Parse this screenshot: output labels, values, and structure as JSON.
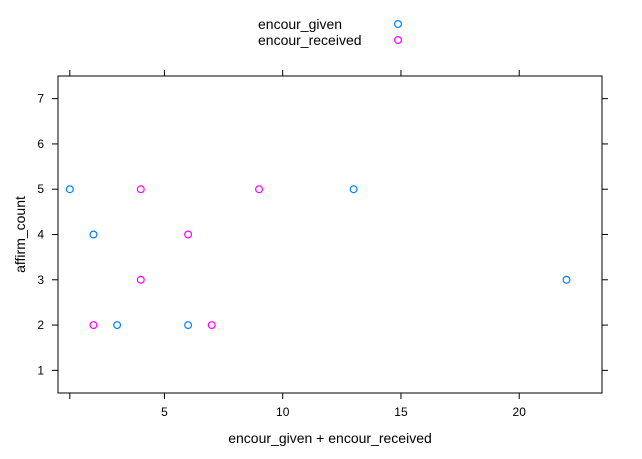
{
  "chart_data": {
    "type": "scatter",
    "xlabel": "encour_given + encour_received",
    "ylabel": "affirm_count",
    "xlim": [
      0.5,
      23.5
    ],
    "ylim": [
      0.5,
      7.5
    ],
    "x_ticks": [
      5,
      10,
      15,
      20
    ],
    "y_ticks": [
      1,
      2,
      3,
      4,
      5,
      6,
      7
    ],
    "legend_position": "top-center",
    "grid": false,
    "series": [
      {
        "name": "encour_given",
        "color": "#0080ff",
        "points": [
          {
            "x": 1,
            "y": 5
          },
          {
            "x": 2,
            "y": 4
          },
          {
            "x": 3,
            "y": 2
          },
          {
            "x": 6,
            "y": 2
          },
          {
            "x": 13,
            "y": 5
          },
          {
            "x": 22,
            "y": 3
          }
        ]
      },
      {
        "name": "encour_received",
        "color": "#ff00ff",
        "points": [
          {
            "x": 2,
            "y": 2
          },
          {
            "x": 4,
            "y": 5
          },
          {
            "x": 4,
            "y": 3
          },
          {
            "x": 6,
            "y": 4
          },
          {
            "x": 7,
            "y": 2
          },
          {
            "x": 9,
            "y": 5
          }
        ]
      }
    ]
  }
}
